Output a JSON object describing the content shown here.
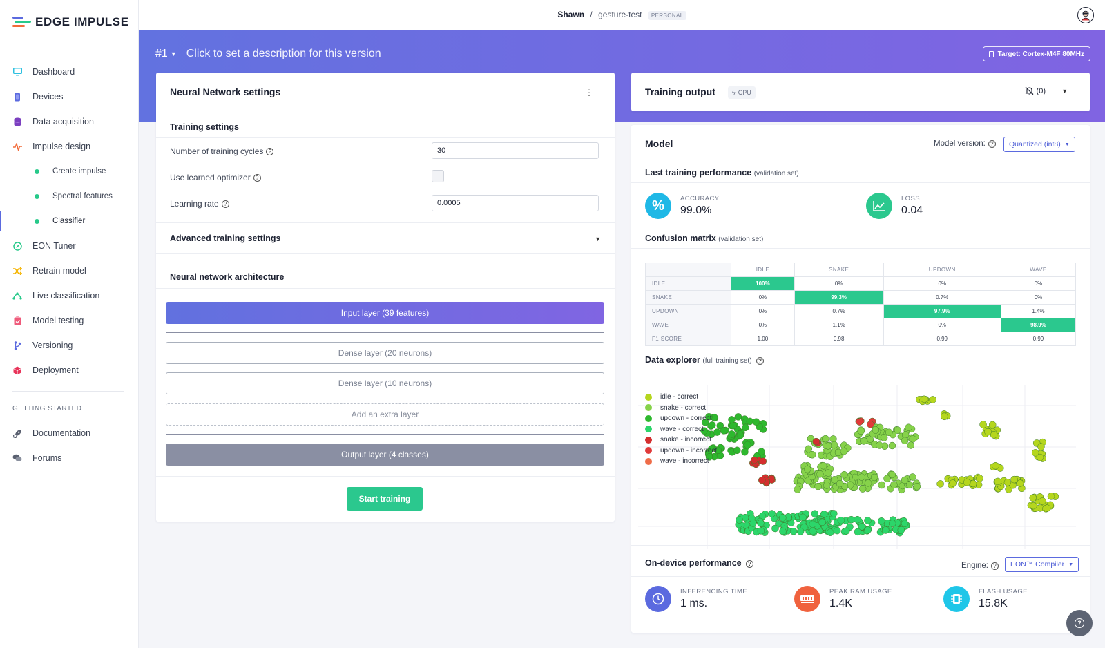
{
  "brand": {
    "name": "EDGE IMPULSE"
  },
  "sidebar": {
    "items": [
      {
        "label": "Dashboard",
        "icon": "monitor-icon",
        "color": "#2ec0e0"
      },
      {
        "label": "Devices",
        "icon": "chip-icon",
        "color": "#5b6adf"
      },
      {
        "label": "Data acquisition",
        "icon": "database-icon",
        "color": "#7b3fbf"
      },
      {
        "label": "Impulse design",
        "icon": "pulse-icon",
        "color": "#f26b3a"
      },
      {
        "label": "Create impulse",
        "sub": true
      },
      {
        "label": "Spectral features",
        "sub": true
      },
      {
        "label": "Classifier",
        "sub": true,
        "active": true
      },
      {
        "label": "EON Tuner",
        "icon": "compass-icon",
        "color": "#27c98a"
      },
      {
        "label": "Retrain model",
        "icon": "shuffle-icon",
        "color": "#f5b400"
      },
      {
        "label": "Live classification",
        "icon": "signal-icon",
        "color": "#27c98a"
      },
      {
        "label": "Model testing",
        "icon": "clipboard-check-icon",
        "color": "#ef5a7a"
      },
      {
        "label": "Versioning",
        "icon": "git-branch-icon",
        "color": "#5b6adf"
      },
      {
        "label": "Deployment",
        "icon": "cube-icon",
        "color": "#e8345a"
      }
    ],
    "section_title": "GETTING STARTED",
    "getting_started": [
      {
        "label": "Documentation",
        "icon": "rocket-icon"
      },
      {
        "label": "Forums",
        "icon": "chat-icon"
      }
    ]
  },
  "header": {
    "user": "Shawn",
    "separator": "/",
    "project": "gesture-test",
    "badge": "PERSONAL"
  },
  "hero": {
    "version": "#1",
    "description": "Click to set a description for this version",
    "target": "Target: Cortex-M4F 80MHz"
  },
  "nn_settings": {
    "title": "Neural Network settings",
    "training_settings_title": "Training settings",
    "cycles_label": "Number of training cycles",
    "cycles_value": "30",
    "optimizer_label": "Use learned optimizer",
    "optimizer_checked": false,
    "lr_label": "Learning rate",
    "lr_value": "0.0005",
    "advanced_title": "Advanced training settings",
    "architecture_title": "Neural network architecture",
    "input_layer": "Input layer (39 features)",
    "dense1": "Dense layer (20 neurons)",
    "dense2": "Dense layer (10 neurons)",
    "add_layer": "Add an extra layer",
    "output_layer": "Output layer (4 classes)",
    "start_button": "Start training"
  },
  "training_output": {
    "title": "Training output",
    "badge": "CPU",
    "count": "(0)"
  },
  "model": {
    "title": "Model",
    "version_label": "Model version:",
    "version_value": "Quantized (int8)",
    "last_perf_title": "Last training performance",
    "last_perf_sub": "(validation set)",
    "accuracy_label": "ACCURACY",
    "accuracy_value": "99.0%",
    "loss_label": "LOSS",
    "loss_value": "0.04",
    "cm_title": "Confusion matrix",
    "cm_sub": "(validation set)",
    "cm_columns": [
      "IDLE",
      "SNAKE",
      "UPDOWN",
      "WAVE"
    ],
    "cm_rows": [
      {
        "label": "IDLE",
        "values": [
          "100%",
          "0%",
          "0%",
          "0%"
        ],
        "hl": 0
      },
      {
        "label": "SNAKE",
        "values": [
          "0%",
          "99.3%",
          "0.7%",
          "0%"
        ],
        "hl": 1
      },
      {
        "label": "UPDOWN",
        "values": [
          "0%",
          "0.7%",
          "97.9%",
          "1.4%"
        ],
        "hl": 2
      },
      {
        "label": "WAVE",
        "values": [
          "0%",
          "1.1%",
          "0%",
          "98.9%"
        ],
        "hl": 3
      },
      {
        "label": "F1 SCORE",
        "values": [
          "1.00",
          "0.98",
          "0.99",
          "0.99"
        ],
        "hl": -1
      }
    ],
    "explorer_title": "Data explorer",
    "explorer_sub": "(full training set)",
    "legend": [
      {
        "label": "idle - correct",
        "color": "#b5d61e"
      },
      {
        "label": "snake - correct",
        "color": "#86d24a"
      },
      {
        "label": "updown - correct",
        "color": "#2eb82e"
      },
      {
        "label": "wave - correct",
        "color": "#2cd66a"
      },
      {
        "label": "snake - incorrect",
        "color": "#d42e2e"
      },
      {
        "label": "updown - incorrect",
        "color": "#e03a3a"
      },
      {
        "label": "wave - incorrect",
        "color": "#ef6c48"
      }
    ],
    "ondevice_title": "On-device performance",
    "engine_label": "Engine:",
    "engine_value": "EON™ Compiler",
    "inference_label": "INFERENCING TIME",
    "inference_value": "1 ms.",
    "ram_label": "PEAK RAM USAGE",
    "ram_value": "1.4K",
    "flash_label": "FLASH USAGE",
    "flash_value": "15.8K"
  }
}
